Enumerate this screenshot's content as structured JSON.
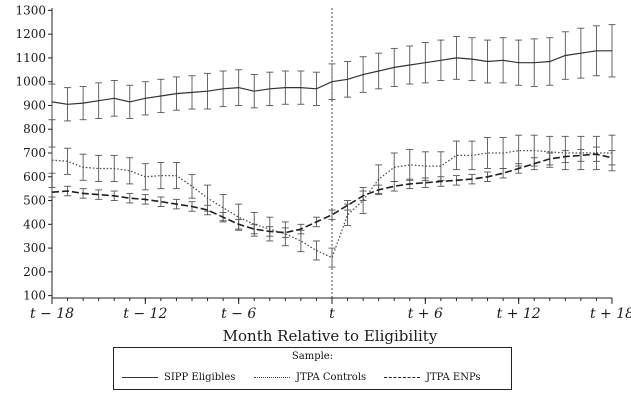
{
  "chart_data": {
    "type": "line",
    "xlabel": "Month Relative to Eligibility",
    "ylabel": "",
    "xlim": [
      -18,
      18
    ],
    "ylim": [
      90,
      1310
    ],
    "yticks": [
      100,
      200,
      300,
      400,
      500,
      600,
      700,
      800,
      900,
      1000,
      1100,
      1200,
      1300
    ],
    "xticks": [
      -18,
      -12,
      -6,
      0,
      6,
      12,
      18
    ],
    "xtick_labels": [
      "t − 18",
      "t − 12",
      "t − 6",
      "t",
      "t + 6",
      "t + 12",
      "t + 18"
    ],
    "reference_line_x": 0,
    "legend": {
      "title": "Sample:",
      "position": "bottom"
    },
    "x": [
      -18,
      -17,
      -16,
      -15,
      -14,
      -13,
      -12,
      -11,
      -10,
      -9,
      -8,
      -7,
      -6,
      -5,
      -4,
      -3,
      -2,
      -1,
      0,
      1,
      2,
      3,
      4,
      5,
      6,
      7,
      8,
      9,
      10,
      11,
      12,
      13,
      14,
      15,
      16,
      17,
      18
    ],
    "series": [
      {
        "name": "SIPP Eligibles",
        "style": "solid",
        "values": [
          915,
          905,
          910,
          920,
          930,
          915,
          930,
          940,
          950,
          955,
          960,
          970,
          975,
          960,
          970,
          975,
          975,
          970,
          1000,
          1010,
          1030,
          1045,
          1060,
          1070,
          1080,
          1090,
          1100,
          1095,
          1085,
          1090,
          1080,
          1080,
          1085,
          1110,
          1120,
          1130,
          1130
        ],
        "error": [
          75,
          70,
          70,
          75,
          75,
          70,
          70,
          70,
          70,
          70,
          75,
          75,
          75,
          70,
          70,
          70,
          70,
          70,
          75,
          75,
          75,
          75,
          80,
          80,
          85,
          85,
          90,
          90,
          90,
          95,
          95,
          100,
          100,
          100,
          105,
          105,
          110
        ]
      },
      {
        "name": "JTPA Controls",
        "style": "dotted",
        "values": [
          670,
          665,
          640,
          635,
          635,
          625,
          600,
          605,
          605,
          560,
          510,
          470,
          430,
          400,
          380,
          360,
          330,
          290,
          260,
          440,
          500,
          590,
          640,
          650,
          645,
          645,
          690,
          690,
          700,
          700,
          710,
          710,
          705,
          700,
          700,
          700,
          700
        ],
        "error": [
          55,
          55,
          55,
          55,
          55,
          55,
          55,
          55,
          55,
          50,
          55,
          55,
          55,
          50,
          50,
          50,
          45,
          40,
          40,
          45,
          55,
          60,
          60,
          65,
          60,
          60,
          60,
          60,
          65,
          65,
          65,
          65,
          65,
          70,
          70,
          70,
          75
        ]
      },
      {
        "name": "JTPA ENPs",
        "style": "dashed",
        "values": [
          535,
          540,
          530,
          525,
          520,
          510,
          505,
          495,
          485,
          475,
          460,
          430,
          400,
          380,
          370,
          365,
          380,
          410,
          440,
          480,
          520,
          545,
          560,
          570,
          575,
          580,
          585,
          590,
          600,
          615,
          635,
          655,
          675,
          685,
          690,
          695,
          680
        ],
        "error": [
          20,
          20,
          20,
          20,
          20,
          20,
          20,
          20,
          20,
          20,
          20,
          20,
          20,
          20,
          20,
          20,
          20,
          20,
          20,
          20,
          20,
          20,
          20,
          20,
          20,
          20,
          20,
          20,
          20,
          20,
          20,
          25,
          25,
          25,
          25,
          30,
          30
        ]
      }
    ]
  }
}
